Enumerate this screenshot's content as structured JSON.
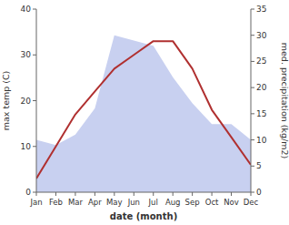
{
  "chart_data": {
    "type": "line",
    "xlabel": "date (month)",
    "ylabel": "max temp (C)",
    "y2label": "med. precipitation (kg/m2)",
    "categories": [
      "Jan",
      "Feb",
      "Mar",
      "Apr",
      "May",
      "Jun",
      "Jul",
      "Aug",
      "Sep",
      "Oct",
      "Nov",
      "Dec"
    ],
    "series": [
      {
        "type": "area",
        "axis": "y2",
        "color": "#c8d0f0",
        "values": [
          10,
          9,
          11,
          16,
          30,
          29,
          28,
          22,
          17,
          13,
          13,
          10
        ]
      },
      {
        "type": "line",
        "color": "#b03030",
        "values": [
          3,
          10,
          17,
          22,
          27,
          30,
          33,
          33,
          27,
          18,
          12,
          6
        ]
      }
    ],
    "ylim": [
      0,
      40
    ],
    "yticks": [
      0,
      10,
      20,
      30,
      40
    ],
    "y2lim": [
      0,
      35
    ],
    "y2ticks": [
      0,
      5,
      10,
      15,
      20,
      25,
      30,
      35
    ],
    "grid": false
  }
}
